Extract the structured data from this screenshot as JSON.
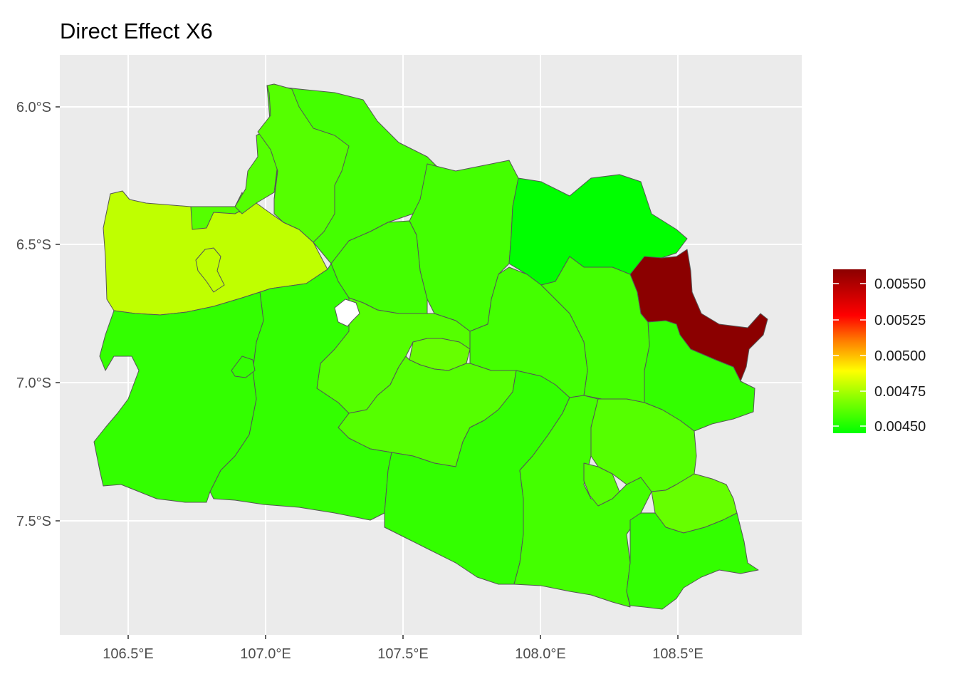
{
  "map": {
    "title": "Direct Effect X6",
    "y_ticks": [
      "6.0°S",
      "6.5°S",
      "7.0°S",
      "7.5°S"
    ],
    "x_ticks": [
      "106.5°E",
      "107.0°E",
      "107.5°E",
      "108.0°E",
      "108.5°E"
    ],
    "x_range_lon": [
      106.25,
      108.95
    ],
    "y_range_lat": [
      -5.82,
      -7.87
    ],
    "panel_background": "#ebebeb",
    "grid_color": "#ffffff",
    "border_color": "#555555"
  },
  "legend": {
    "gradient": [
      "#00ff00",
      "#80ff00",
      "#ffff00",
      "#ff8000",
      "#ff0000",
      "#8b0000"
    ],
    "labels": [
      "0.00550",
      "0.00525",
      "0.00500",
      "0.00475",
      "0.00450"
    ],
    "min": 0.00445,
    "max": 0.00559
  },
  "regions_colors": {
    "darkred": "#8b0000",
    "yellowgreen": "#bfff00",
    "lime_a": "#00ff00",
    "lime_b": "#22ff00",
    "lime_c": "#33ff00",
    "lime_d": "#44ff00",
    "lime_e": "#55ff00",
    "lime_f": "#66ff00",
    "jakarta": "#ffffff"
  }
}
